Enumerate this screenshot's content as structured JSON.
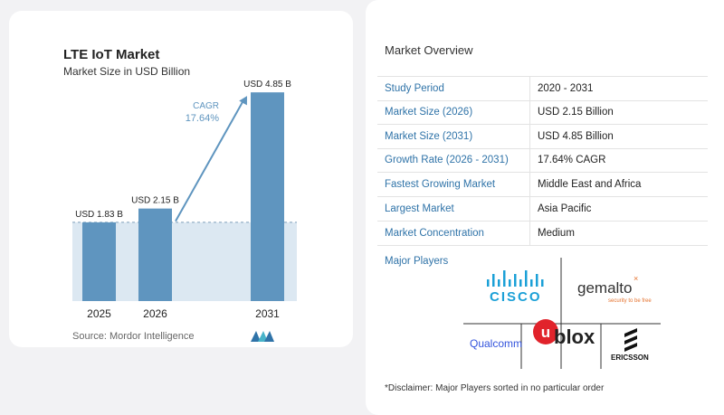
{
  "chart_data": {
    "type": "bar",
    "title": "LTE IoT Market",
    "subtitle": "Market Size in USD Billion",
    "categories": [
      "2025",
      "2026",
      "2031"
    ],
    "values": [
      1.83,
      2.15,
      4.85
    ],
    "data_labels": [
      "USD 1.83 B",
      "USD 2.15 B",
      "USD 4.85 B"
    ],
    "cagr_label": "CAGR",
    "cagr_value": "17.64%",
    "ylim": [
      0,
      5
    ],
    "source": "Source:  Mordor Intelligence",
    "bar_color": "#5f95bf",
    "shade_color": "#dce8f2"
  },
  "overview": {
    "title": "Market Overview",
    "rows": [
      {
        "label": "Study Period",
        "value": "2020 - 2031"
      },
      {
        "label": "Market Size (2026)",
        "value": "USD 2.15 Billion"
      },
      {
        "label": "Market Size (2031)",
        "value": "USD 4.85 Billion"
      },
      {
        "label": "Growth Rate (2026 - 2031)",
        "value": "17.64% CAGR"
      },
      {
        "label": "Fastest Growing Market",
        "value": "Middle East and Africa"
      },
      {
        "label": "Largest Market",
        "value": "Asia Pacific"
      },
      {
        "label": "Market Concentration",
        "value": "Medium"
      }
    ],
    "players_label": "Major Players",
    "players": {
      "cisco": "CISCO",
      "gemalto": "gemalto",
      "gemalto_tag": "security to be free",
      "qualcomm": "Qualcomm",
      "ublox": "blox",
      "ericsson": "ERICSSON"
    },
    "disclaimer": "*Disclaimer: Major Players sorted in no particular order"
  }
}
